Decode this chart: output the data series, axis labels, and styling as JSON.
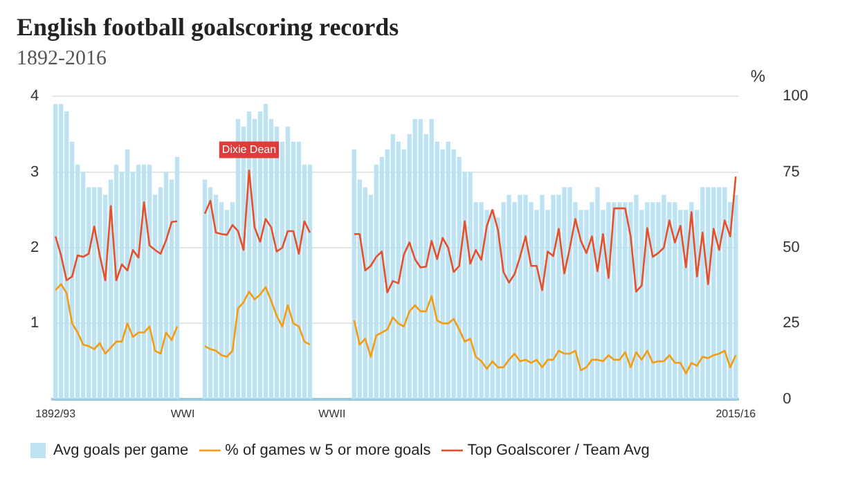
{
  "chart_data": {
    "type": "bar",
    "title": "English football goalscoring records",
    "subtitle": "1892-2016",
    "y2label": "%",
    "categories": [
      "1892/93",
      null,
      null,
      null,
      null,
      null,
      null,
      null,
      null,
      null,
      null,
      null,
      null,
      null,
      null,
      null,
      null,
      null,
      null,
      null,
      null,
      null,
      null,
      "WWI",
      null,
      null,
      null,
      null,
      null,
      null,
      null,
      null,
      null,
      null,
      null,
      null,
      null,
      null,
      null,
      null,
      null,
      null,
      null,
      null,
      null,
      null,
      null,
      null,
      null,
      null,
      "WWII",
      null,
      null,
      null,
      null,
      null,
      null,
      null,
      null,
      null,
      null,
      null,
      null,
      null,
      null,
      null,
      null,
      null,
      null,
      null,
      null,
      null,
      null,
      null,
      null,
      null,
      null,
      null,
      null,
      null,
      null,
      null,
      null,
      null,
      null,
      null,
      null,
      null,
      null,
      null,
      null,
      null,
      null,
      null,
      null,
      null,
      null,
      null,
      null,
      null,
      null,
      null,
      null,
      null,
      null,
      null,
      null,
      null,
      null,
      null,
      null,
      null,
      null,
      null,
      null,
      null,
      null,
      null,
      null,
      null,
      null,
      null,
      null,
      "2015/16"
    ],
    "series": [
      {
        "name": "Avg goals per game",
        "type": "bar",
        "color": "#bde3f3",
        "values": [
          3.9,
          3.9,
          3.8,
          3.4,
          3.1,
          3.0,
          2.8,
          2.8,
          2.8,
          2.7,
          2.9,
          3.1,
          3.0,
          3.3,
          3.0,
          3.1,
          3.1,
          3.1,
          2.7,
          2.8,
          3.0,
          2.9,
          3.2,
          null,
          null,
          null,
          null,
          2.9,
          2.8,
          2.7,
          2.6,
          2.5,
          2.6,
          3.7,
          3.6,
          3.8,
          3.7,
          3.8,
          3.9,
          3.7,
          3.6,
          3.4,
          3.6,
          3.4,
          3.4,
          3.1,
          3.1,
          null,
          null,
          null,
          null,
          null,
          null,
          null,
          3.3,
          2.9,
          2.8,
          2.7,
          3.1,
          3.2,
          3.3,
          3.5,
          3.4,
          3.3,
          3.5,
          3.7,
          3.7,
          3.5,
          3.7,
          3.4,
          3.3,
          3.4,
          3.3,
          3.2,
          3.0,
          3.0,
          2.6,
          2.6,
          2.5,
          2.5,
          2.4,
          2.6,
          2.7,
          2.6,
          2.7,
          2.7,
          2.6,
          2.5,
          2.7,
          2.5,
          2.7,
          2.7,
          2.8,
          2.8,
          2.6,
          2.5,
          2.5,
          2.6,
          2.8,
          2.5,
          2.6,
          2.6,
          2.6,
          2.6,
          2.6,
          2.7,
          2.5,
          2.6,
          2.6,
          2.6,
          2.7,
          2.6,
          2.6,
          2.5,
          2.5,
          2.6,
          2.5,
          2.8,
          2.8,
          2.8,
          2.8,
          2.8,
          2.6,
          2.7
        ]
      },
      {
        "name": "% of games w 5 or more goals",
        "type": "line",
        "axis": "y2",
        "color": "#f39c12",
        "values": [
          36,
          38,
          35,
          25,
          22,
          18,
          17.5,
          16.5,
          18.5,
          15,
          17,
          19,
          19,
          25,
          20.5,
          22,
          22,
          24,
          16,
          15,
          22,
          19.5,
          24,
          null,
          null,
          null,
          null,
          17.5,
          16.5,
          16,
          14.5,
          14,
          16,
          30,
          32,
          35.5,
          33,
          34.5,
          37,
          32.5,
          27.5,
          24,
          31,
          25,
          24,
          19,
          18,
          null,
          null,
          null,
          null,
          null,
          null,
          null,
          26,
          18,
          20,
          14,
          21,
          22,
          23,
          27,
          25,
          24,
          29,
          31,
          29,
          29,
          34,
          26,
          25,
          25,
          26.5,
          23,
          19,
          20,
          14,
          12.5,
          10,
          12.5,
          10.5,
          10.5,
          13,
          15,
          12.5,
          13,
          12,
          13,
          10.5,
          13,
          13,
          16,
          15,
          15,
          16,
          9.5,
          10.5,
          13,
          13,
          12.5,
          14.5,
          13,
          13,
          15.5,
          10.5,
          15.5,
          13,
          16,
          12,
          12.5,
          12.5,
          14.5,
          12,
          12,
          8.5,
          12,
          11,
          14,
          13.5,
          14.5,
          15,
          16,
          10.5,
          14.5
        ]
      },
      {
        "name": "Top Goalscorer / Team Avg",
        "type": "line",
        "color": "#e5502a",
        "values": [
          2.15,
          1.9,
          1.57,
          1.62,
          1.9,
          1.88,
          1.92,
          2.28,
          1.9,
          1.57,
          2.55,
          1.57,
          1.78,
          1.7,
          1.97,
          1.87,
          2.6,
          2.03,
          1.97,
          1.92,
          2.1,
          2.34,
          2.35,
          null,
          null,
          null,
          null,
          2.45,
          2.62,
          2.2,
          2.18,
          2.17,
          2.3,
          2.22,
          1.97,
          3.02,
          2.27,
          2.08,
          2.38,
          2.27,
          1.95,
          2.0,
          2.22,
          2.22,
          1.92,
          2.35,
          2.2,
          null,
          null,
          null,
          null,
          null,
          null,
          null,
          2.18,
          2.18,
          1.7,
          1.76,
          1.88,
          1.95,
          1.41,
          1.56,
          1.53,
          1.91,
          2.07,
          1.85,
          1.74,
          1.75,
          2.09,
          1.85,
          2.13,
          2.0,
          1.68,
          1.76,
          2.35,
          1.79,
          1.97,
          1.84,
          2.29,
          2.5,
          2.24,
          1.68,
          1.54,
          1.65,
          1.88,
          2.15,
          1.76,
          1.76,
          1.44,
          1.95,
          1.89,
          2.25,
          1.66,
          2.0,
          2.38,
          2.09,
          1.93,
          2.15,
          1.69,
          2.18,
          1.6,
          2.52,
          2.52,
          2.52,
          2.15,
          1.42,
          1.5,
          2.26,
          1.88,
          1.93,
          2.0,
          2.36,
          2.07,
          2.29,
          1.74,
          2.47,
          1.62,
          2.2,
          1.52,
          2.25,
          1.97,
          2.36,
          2.15,
          2.94
        ]
      }
    ],
    "ylim": [
      0,
      4
    ],
    "yticks": [
      1,
      2,
      3,
      4
    ],
    "y2lim": [
      0,
      100
    ],
    "y2ticks": [
      0,
      25,
      50,
      75,
      100
    ],
    "annotations": [
      {
        "text": "Dixie Dean",
        "y": 3.02
      }
    ],
    "grid": "y",
    "legend": "bottom",
    "marker": "none",
    "line_style": "solid"
  }
}
